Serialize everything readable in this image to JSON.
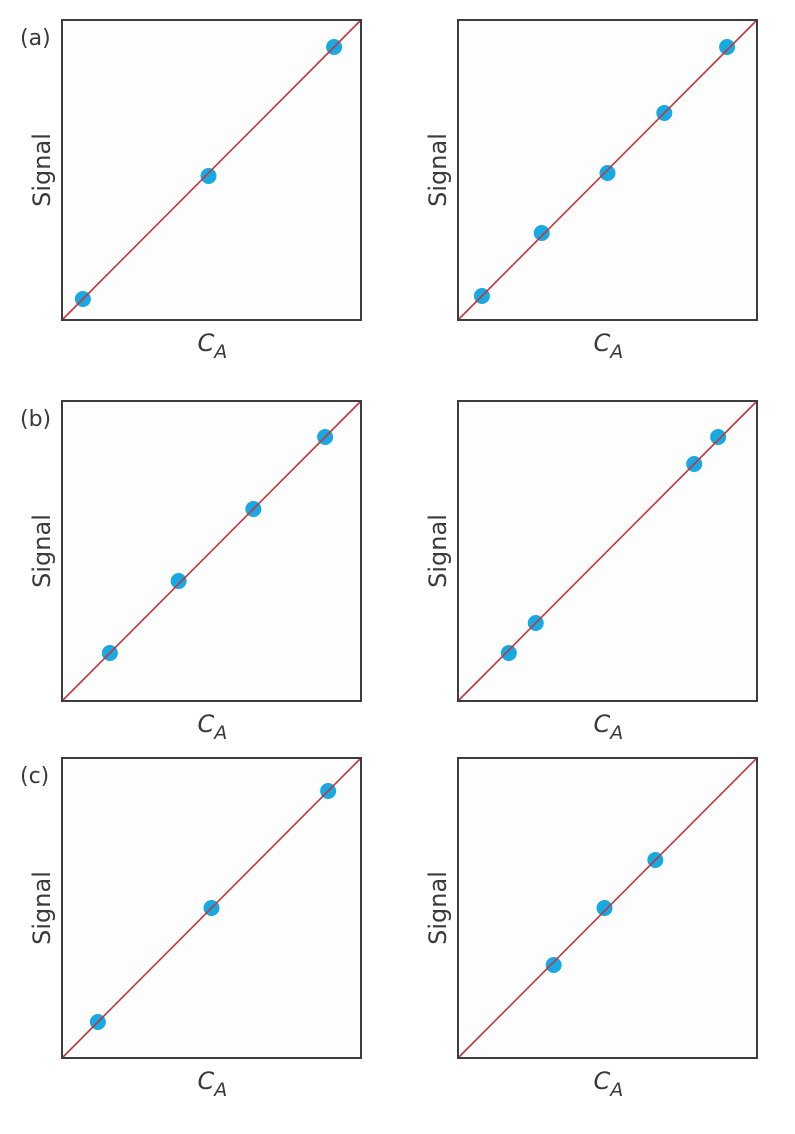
{
  "colors": {
    "point": "#19a9e2",
    "line": "#c2363b",
    "frame": "#3d3d3d",
    "plot_bg": "#fdfdfd"
  },
  "chart_data": [
    {
      "type": "scatter",
      "panel_label": "(a)",
      "xlabel": "C",
      "xlabel_sub": "A",
      "ylabel": "Signal",
      "xlim": [
        0,
        1
      ],
      "ylim": [
        0,
        1
      ],
      "grid": false,
      "line": {
        "x": [
          0,
          1
        ],
        "y": [
          0,
          1
        ]
      },
      "x": [
        0.07,
        0.49,
        0.91
      ],
      "y": [
        0.07,
        0.48,
        0.91
      ]
    },
    {
      "type": "scatter",
      "panel_label": "",
      "xlabel": "C",
      "xlabel_sub": "A",
      "ylabel": "Signal",
      "xlim": [
        0,
        1
      ],
      "ylim": [
        0,
        1
      ],
      "grid": false,
      "line": {
        "x": [
          0,
          1
        ],
        "y": [
          0,
          1
        ]
      },
      "x": [
        0.08,
        0.28,
        0.5,
        0.69,
        0.9
      ],
      "y": [
        0.08,
        0.29,
        0.49,
        0.69,
        0.91
      ]
    },
    {
      "type": "scatter",
      "panel_label": "(b)",
      "xlabel": "C",
      "xlabel_sub": "A",
      "ylabel": "Signal",
      "xlim": [
        0,
        1
      ],
      "ylim": [
        0,
        1
      ],
      "grid": false,
      "line": {
        "x": [
          0,
          1
        ],
        "y": [
          0,
          1
        ]
      },
      "x": [
        0.16,
        0.39,
        0.64,
        0.88
      ],
      "y": [
        0.16,
        0.4,
        0.64,
        0.88
      ]
    },
    {
      "type": "scatter",
      "panel_label": "",
      "xlabel": "C",
      "xlabel_sub": "A",
      "ylabel": "Signal",
      "xlim": [
        0,
        1
      ],
      "ylim": [
        0,
        1
      ],
      "grid": false,
      "line": {
        "x": [
          0,
          1
        ],
        "y": [
          0,
          1
        ]
      },
      "x": [
        0.17,
        0.26,
        0.79,
        0.87
      ],
      "y": [
        0.16,
        0.26,
        0.79,
        0.88
      ]
    },
    {
      "type": "scatter",
      "panel_label": "(c)",
      "xlabel": "C",
      "xlabel_sub": "A",
      "ylabel": "Signal",
      "xlim": [
        0,
        1
      ],
      "ylim": [
        0,
        1
      ],
      "grid": false,
      "line": {
        "x": [
          0,
          1
        ],
        "y": [
          0,
          1
        ]
      },
      "x": [
        0.12,
        0.5,
        0.89
      ],
      "y": [
        0.12,
        0.5,
        0.89
      ]
    },
    {
      "type": "scatter",
      "panel_label": "",
      "xlabel": "C",
      "xlabel_sub": "A",
      "ylabel": "Signal",
      "xlim": [
        0,
        1
      ],
      "ylim": [
        0,
        1
      ],
      "grid": false,
      "line": {
        "x": [
          0,
          1
        ],
        "y": [
          0,
          1
        ]
      },
      "x": [
        0.32,
        0.49,
        0.66
      ],
      "y": [
        0.31,
        0.5,
        0.66
      ]
    }
  ]
}
